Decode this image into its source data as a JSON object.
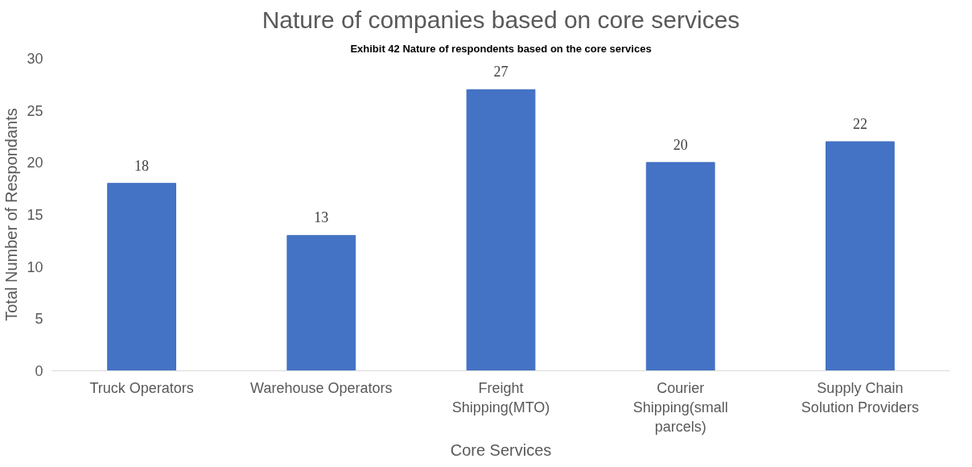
{
  "chart_data": {
    "type": "bar",
    "title": "Nature of companies based on core services",
    "annotations": [
      "Exhibit 42 Nature of respondents based on the core services"
    ],
    "xlabel": "Core Services",
    "ylabel": "Total Number of Respondants",
    "categories": [
      "Truck Operators",
      "Warehouse Operators",
      "Freight Shipping(MTO)",
      "Courier Shipping(small parcels)",
      "Supply Chain Solution Providers"
    ],
    "values": [
      18,
      13,
      27,
      20,
      22
    ],
    "color": "#4472c4",
    "ylim": [
      0,
      30
    ],
    "yticks": [
      0,
      5,
      10,
      15,
      20,
      25,
      30
    ],
    "grid": false,
    "data_labels": true
  }
}
